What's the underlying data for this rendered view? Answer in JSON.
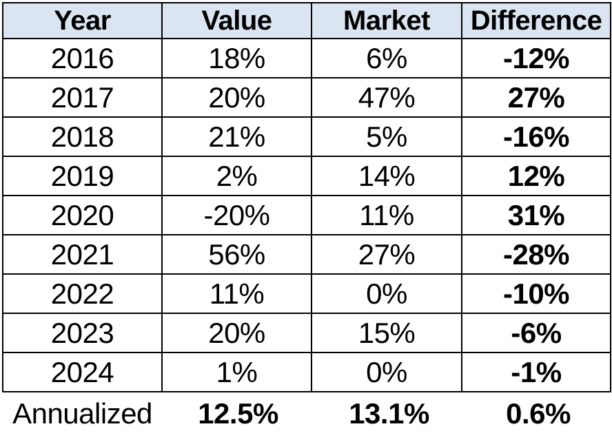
{
  "table": {
    "headers": [
      "Year",
      "Value",
      "Market",
      "Difference"
    ],
    "rows": [
      [
        "2016",
        "18%",
        "6%",
        "-12%"
      ],
      [
        "2017",
        "20%",
        "47%",
        "27%"
      ],
      [
        "2018",
        "21%",
        "5%",
        "-16%"
      ],
      [
        "2019",
        "2%",
        "14%",
        "12%"
      ],
      [
        "2020",
        "-20%",
        "11%",
        "31%"
      ],
      [
        "2021",
        "56%",
        "27%",
        "-28%"
      ],
      [
        "2022",
        "11%",
        "0%",
        "-10%"
      ],
      [
        "2023",
        "20%",
        "15%",
        "-6%"
      ],
      [
        "2024",
        "1%",
        "0%",
        "-1%"
      ]
    ],
    "footer": [
      "Annualized",
      "12.5%",
      "13.1%",
      "0.6%"
    ]
  },
  "colors": {
    "header_bg": "#dbe5f1",
    "border": "#000000",
    "text": "#000000",
    "background": "#ffffff"
  },
  "chart_data": {
    "type": "table",
    "title": "",
    "categories": [
      "2016",
      "2017",
      "2018",
      "2019",
      "2020",
      "2021",
      "2022",
      "2023",
      "2024"
    ],
    "series": [
      {
        "name": "Value",
        "values": [
          18,
          20,
          21,
          2,
          -20,
          56,
          11,
          20,
          1
        ]
      },
      {
        "name": "Market",
        "values": [
          6,
          47,
          5,
          14,
          11,
          27,
          0,
          15,
          0
        ]
      },
      {
        "name": "Difference",
        "values": [
          -12,
          27,
          -16,
          12,
          31,
          -28,
          -10,
          -6,
          -1
        ]
      }
    ],
    "annualized": {
      "Value": 12.5,
      "Market": 13.1,
      "Difference": 0.6
    },
    "units": "percent"
  }
}
